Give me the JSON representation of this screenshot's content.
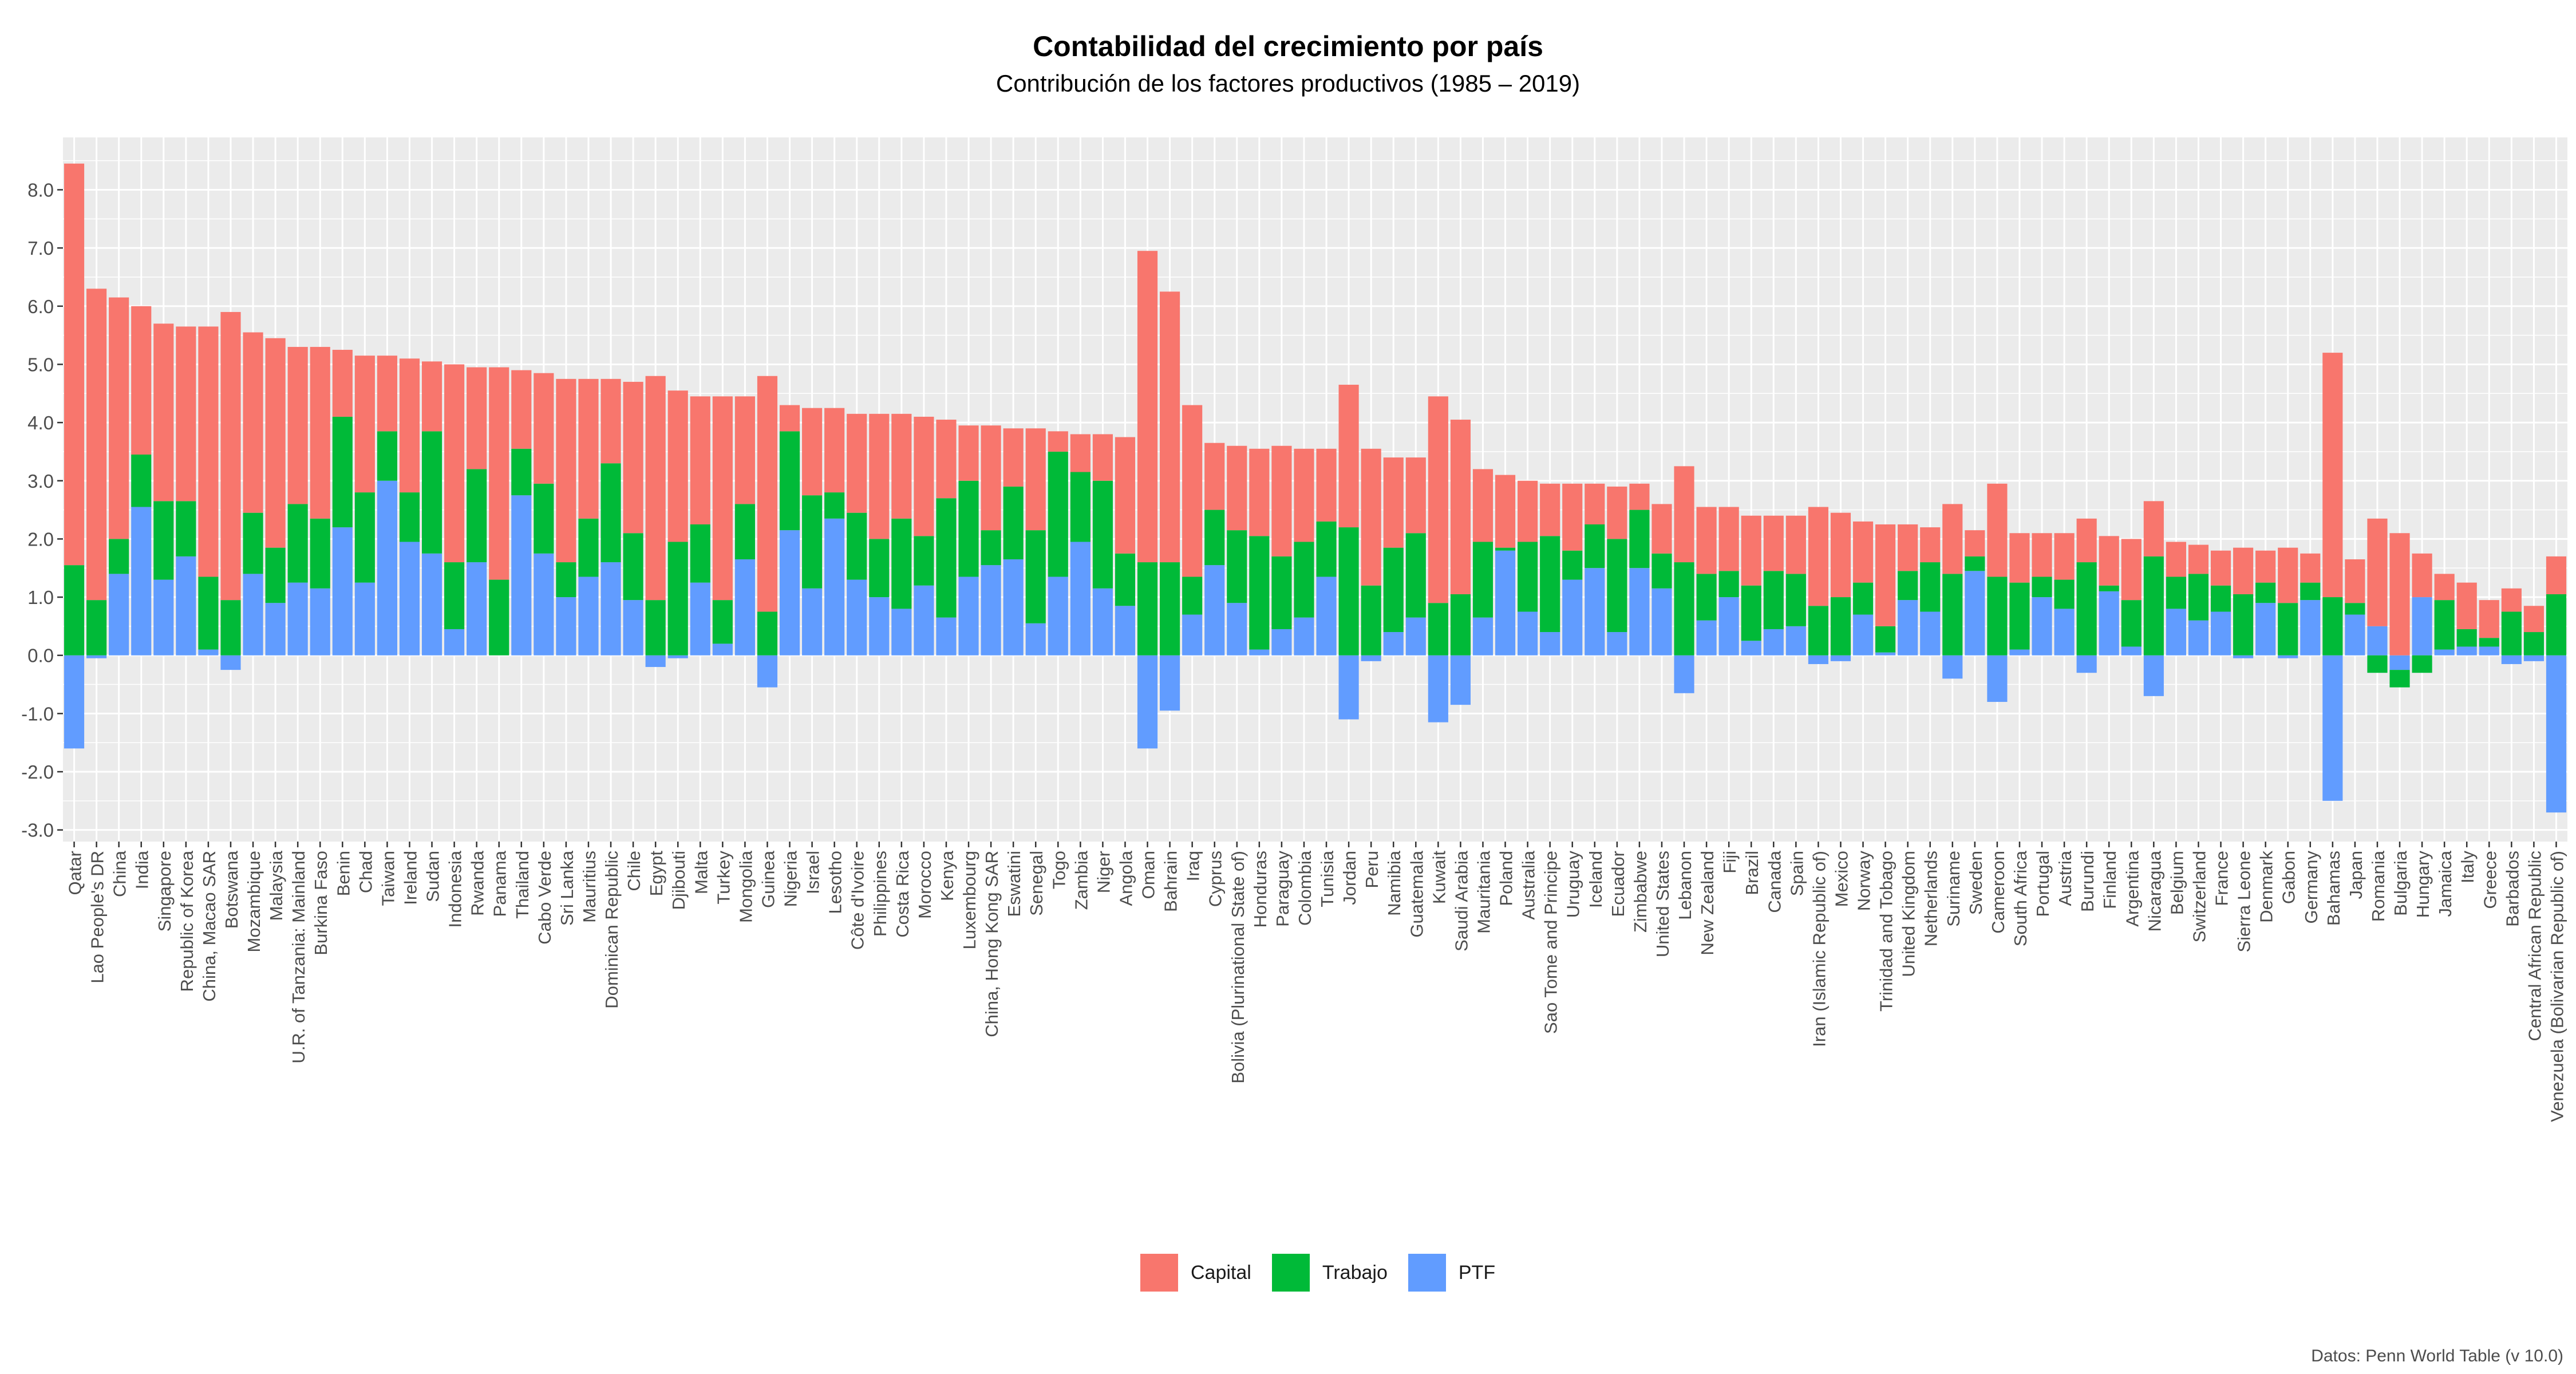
{
  "chart_data": {
    "type": "bar",
    "stacked": true,
    "title": "Contabilidad del crecimiento por país",
    "subtitle": "Contribución de los factores productivos (1985 – 2019)",
    "caption": "Datos: Penn World Table (v 10.0)",
    "xlabel": "",
    "ylabel": "",
    "ylim": [
      -3.2,
      8.9
    ],
    "yticks": [
      8,
      7,
      6,
      5,
      4,
      3,
      2,
      1,
      0,
      -1,
      -2,
      -3
    ],
    "ytick_labels": [
      "8.0",
      "7.0",
      "6.0",
      "5.0",
      "4.0",
      "3.0",
      "2.0",
      "1.0",
      "0.0",
      "-1.0",
      "-2.0",
      "-3.0"
    ],
    "legend_position": "bottom",
    "grid": true,
    "colors": {
      "Capital": "#F8766D",
      "Trabajo": "#00BA38",
      "PTF": "#619CFF",
      "panel": "#EBEBEB",
      "grid": "#FFFFFF"
    },
    "categories": [
      "Qatar",
      "Lao People's DR",
      "China",
      "India",
      "Singapore",
      "Republic of Korea",
      "China, Macao SAR",
      "Botswana",
      "Mozambique",
      "Malaysia",
      "U.R. of Tanzania: Mainland",
      "Burkina Faso",
      "Benin",
      "Chad",
      "Taiwan",
      "Ireland",
      "Sudan",
      "Indonesia",
      "Rwanda",
      "Panama",
      "Thailand",
      "Cabo Verde",
      "Sri Lanka",
      "Mauritius",
      "Dominican Republic",
      "Chile",
      "Egypt",
      "Djibouti",
      "Malta",
      "Turkey",
      "Mongolia",
      "Guinea",
      "Nigeria",
      "Israel",
      "Lesotho",
      "Côte d'Ivoire",
      "Philippines",
      "Costa Rica",
      "Morocco",
      "Kenya",
      "Luxembourg",
      "China, Hong Kong SAR",
      "Eswatini",
      "Senegal",
      "Togo",
      "Zambia",
      "Niger",
      "Angola",
      "Oman",
      "Bahrain",
      "Iraq",
      "Cyprus",
      "Bolivia (Plurinational State of)",
      "Honduras",
      "Paraguay",
      "Colombia",
      "Tunisia",
      "Jordan",
      "Peru",
      "Namibia",
      "Guatemala",
      "Kuwait",
      "Saudi Arabia",
      "Mauritania",
      "Poland",
      "Australia",
      "Sao Tome and Principe",
      "Uruguay",
      "Iceland",
      "Ecuador",
      "Zimbabwe",
      "United States",
      "Lebanon",
      "New Zealand",
      "Fiji",
      "Brazil",
      "Canada",
      "Spain",
      "Iran (Islamic Republic of)",
      "Mexico",
      "Norway",
      "Trinidad and Tobago",
      "United Kingdom",
      "Netherlands",
      "Suriname",
      "Sweden",
      "Cameroon",
      "South Africa",
      "Portugal",
      "Austria",
      "Burundi",
      "Finland",
      "Argentina",
      "Nicaragua",
      "Belgium",
      "Switzerland",
      "France",
      "Sierra Leone",
      "Denmark",
      "Gabon",
      "Germany",
      "Bahamas",
      "Japan",
      "Romania",
      "Bulgaria",
      "Hungary",
      "Jamaica",
      "Italy",
      "Greece",
      "Barbados",
      "Central African Republic",
      "Venezuela (Bolivarian Republic of)"
    ],
    "series": [
      {
        "name": "PTF",
        "values": [
          -1.6,
          -0.05,
          1.4,
          2.55,
          1.3,
          1.7,
          0.1,
          -0.25,
          1.4,
          0.9,
          1.25,
          1.15,
          2.2,
          1.25,
          3.0,
          1.95,
          1.75,
          0.45,
          1.6,
          0.0,
          2.75,
          1.75,
          1.0,
          1.35,
          1.6,
          0.95,
          -0.2,
          -0.05,
          1.25,
          0.2,
          1.65,
          -0.55,
          2.15,
          1.15,
          2.35,
          1.3,
          1.0,
          0.8,
          1.2,
          0.65,
          1.35,
          1.55,
          1.65,
          0.55,
          1.35,
          1.95,
          1.15,
          0.85,
          -1.6,
          -0.95,
          0.7,
          1.55,
          0.9,
          0.1,
          0.45,
          0.65,
          1.35,
          -1.1,
          -0.1,
          0.4,
          0.65,
          -1.15,
          -0.85,
          0.65,
          1.8,
          0.75,
          0.4,
          1.3,
          1.5,
          0.4,
          1.5,
          1.15,
          -0.65,
          0.6,
          1.0,
          0.25,
          0.45,
          0.5,
          -0.15,
          -0.1,
          0.7,
          0.05,
          0.95,
          0.75,
          -0.4,
          1.45,
          -0.8,
          0.1,
          1.0,
          0.8,
          -0.3,
          1.1,
          0.15,
          -0.7,
          0.8,
          0.6,
          0.75,
          -0.05,
          0.9,
          -0.05,
          0.95,
          -2.5,
          0.7,
          0.5,
          -0.25,
          1.0,
          0.1,
          0.15,
          0.15,
          -0.15,
          -0.1,
          -2.7
        ]
      },
      {
        "name": "Trabajo",
        "values": [
          1.55,
          0.95,
          0.6,
          0.9,
          1.35,
          0.95,
          1.25,
          0.95,
          1.05,
          0.95,
          1.35,
          1.2,
          1.9,
          1.55,
          0.85,
          0.85,
          2.1,
          1.15,
          1.6,
          1.3,
          0.8,
          1.2,
          0.6,
          1.0,
          1.7,
          1.15,
          0.95,
          1.95,
          1.0,
          0.75,
          0.95,
          0.75,
          1.7,
          1.6,
          0.45,
          1.15,
          1.0,
          1.55,
          0.85,
          2.05,
          1.65,
          0.6,
          1.25,
          1.6,
          2.15,
          1.2,
          1.85,
          0.9,
          1.6,
          1.6,
          0.65,
          0.95,
          1.25,
          1.95,
          1.25,
          1.3,
          0.95,
          2.2,
          1.2,
          1.45,
          1.45,
          0.9,
          1.05,
          1.3,
          0.05,
          1.2,
          1.65,
          0.5,
          0.75,
          1.6,
          1.0,
          0.6,
          1.6,
          0.8,
          0.45,
          0.95,
          1.0,
          0.9,
          0.85,
          1.0,
          0.55,
          0.45,
          0.5,
          0.85,
          1.4,
          0.25,
          1.35,
          1.15,
          0.35,
          0.5,
          1.6,
          0.1,
          0.8,
          1.7,
          0.55,
          0.8,
          0.45,
          1.05,
          0.35,
          0.9,
          0.3,
          1.0,
          0.2,
          -0.3,
          -0.3,
          -0.3,
          0.85,
          0.3,
          0.15,
          0.75,
          0.4,
          1.05
        ]
      },
      {
        "name": "Capital",
        "values": [
          6.9,
          5.35,
          4.15,
          2.55,
          3.05,
          3.0,
          4.3,
          4.95,
          3.1,
          3.6,
          2.7,
          2.95,
          1.15,
          2.35,
          1.3,
          2.3,
          1.2,
          3.4,
          1.75,
          3.65,
          1.35,
          1.9,
          3.15,
          2.4,
          1.45,
          2.6,
          3.85,
          2.6,
          2.2,
          3.5,
          1.85,
          4.05,
          0.45,
          1.5,
          1.45,
          1.7,
          2.15,
          1.8,
          2.05,
          1.35,
          0.95,
          1.8,
          1.0,
          1.75,
          0.35,
          0.65,
          0.8,
          2.0,
          5.35,
          4.65,
          2.95,
          1.15,
          1.45,
          1.5,
          1.9,
          1.6,
          1.25,
          2.45,
          2.35,
          1.55,
          1.3,
          3.55,
          3.0,
          1.25,
          1.25,
          1.05,
          0.9,
          1.15,
          0.7,
          0.9,
          0.45,
          0.85,
          1.65,
          1.15,
          1.1,
          1.2,
          0.95,
          1.0,
          1.7,
          1.45,
          1.05,
          1.75,
          0.8,
          0.6,
          1.2,
          0.45,
          1.6,
          0.85,
          0.75,
          0.8,
          0.75,
          0.85,
          1.05,
          0.95,
          0.6,
          0.5,
          0.6,
          0.8,
          0.55,
          0.95,
          0.5,
          4.2,
          0.75,
          1.85,
          2.1,
          0.75,
          0.45,
          0.8,
          0.65,
          0.4,
          0.45,
          0.65
        ]
      }
    ]
  }
}
